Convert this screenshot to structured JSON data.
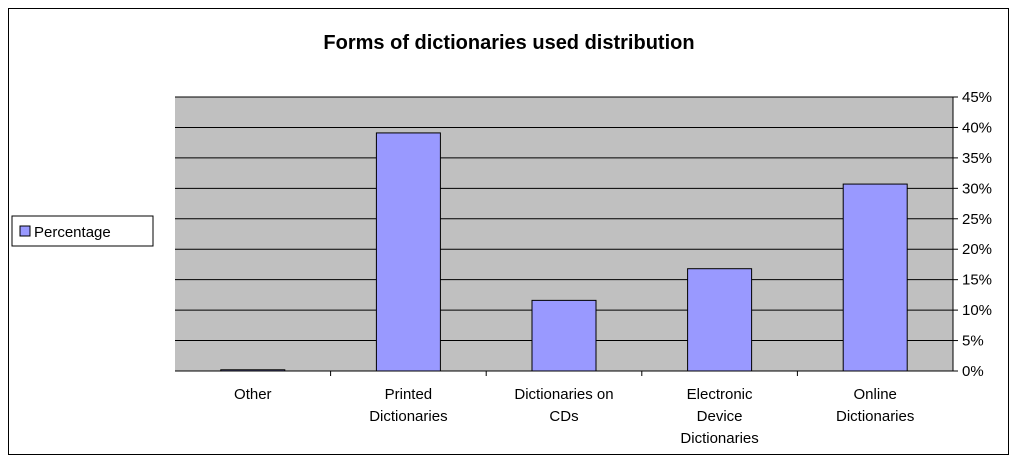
{
  "chart_data": {
    "type": "bar",
    "title": "Forms of dictionaries used distribution",
    "xlabel": "",
    "ylabel": "",
    "categories": [
      [
        "Other"
      ],
      [
        "Printed",
        "Dictionaries"
      ],
      [
        "Dictionaries on",
        "CDs"
      ],
      [
        "Electronic",
        "Device",
        "Dictionaries"
      ],
      [
        "Online",
        "Dictionaries"
      ]
    ],
    "series": [
      {
        "name": "Percentage",
        "values": [
          0.2,
          39.1,
          11.6,
          16.8,
          30.7
        ]
      }
    ],
    "ylim": [
      0,
      45
    ],
    "yticks": [
      "0%",
      "5%",
      "10%",
      "15%",
      "20%",
      "25%",
      "30%",
      "35%",
      "40%",
      "45%"
    ],
    "y_axis_side": "right",
    "grid": true,
    "legend_position": "left",
    "colors": {
      "plot_background": "#c0c0c0",
      "bar_fill": "#9999ff",
      "bar_stroke": "#000000",
      "grid": "#000000",
      "text": "#000000"
    }
  }
}
